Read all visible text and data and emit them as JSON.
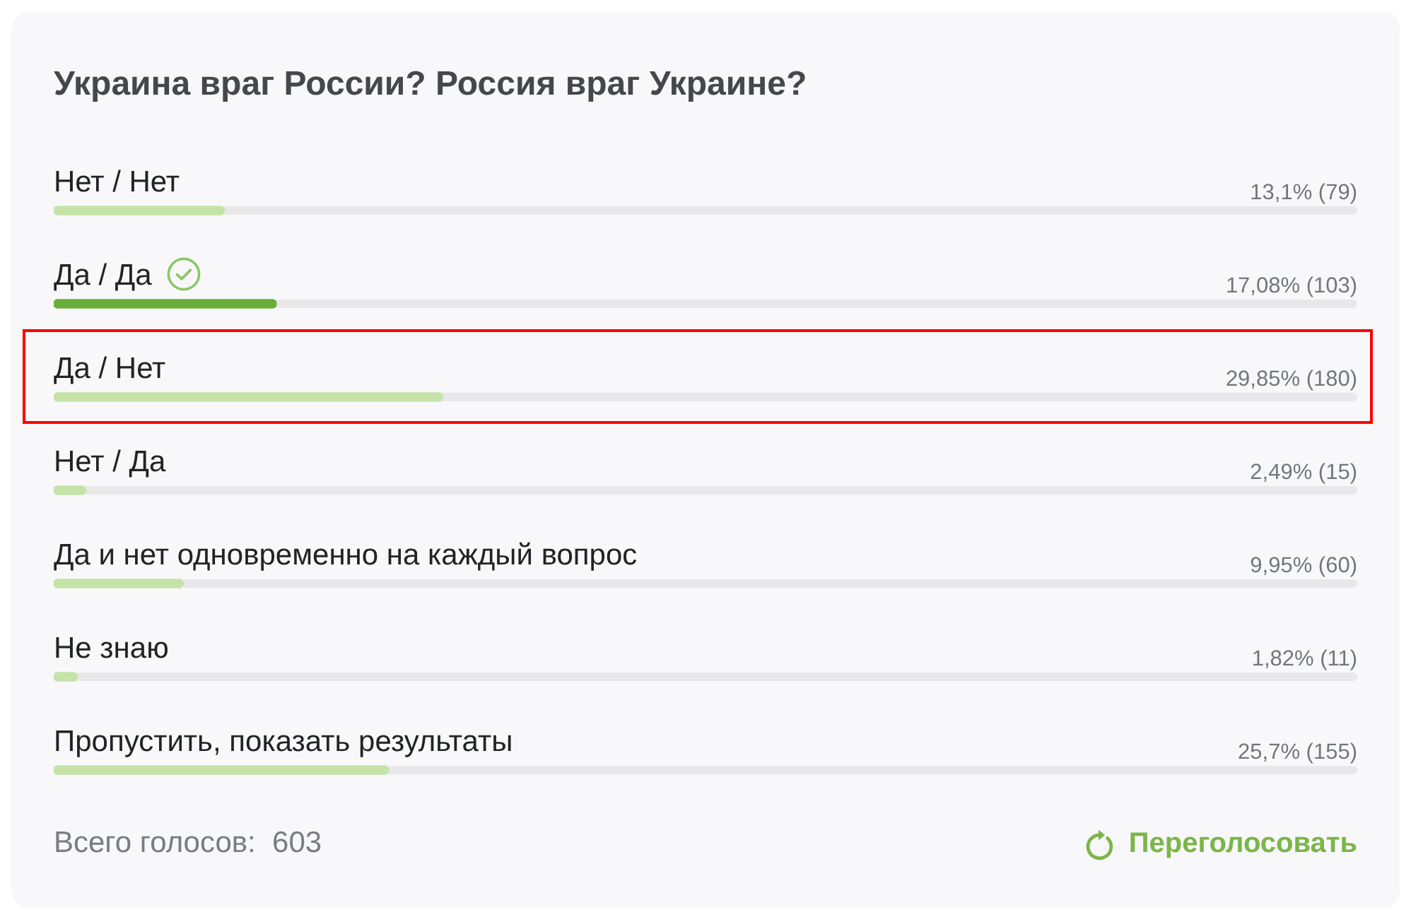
{
  "chart_data": {
    "type": "bar",
    "orientation": "horizontal",
    "title": "Украина враг России? Россия враг Украине?",
    "categories": [
      "Нет / Нет",
      "Да / Да",
      "Да / Нет",
      "Нет / Да",
      "Да и нет одновременно на каждый вопрос",
      "Не знаю",
      "Пропустить, показать результаты"
    ],
    "values": [
      13.1,
      17.08,
      29.85,
      2.49,
      9.95,
      1.82,
      25.7
    ],
    "colors": [
      "#c5e3a8",
      "#6aae3a",
      "#c5e3a8",
      "#c5e3a8",
      "#c5e3a8",
      "#c5e3a8",
      "#c5e3a8"
    ],
    "value_labels": [
      "13,1% (79)",
      "17,08% (103)",
      "29,85% (180)",
      "2,49% (15)",
      "9,95% (60)",
      "1,82% (11)",
      "25,7% (155)"
    ],
    "xlim": [
      0,
      100
    ],
    "tick_labels": "y",
    "annotations": [
      "Всего голосов:  603",
      "Переголосовать"
    ]
  }
}
